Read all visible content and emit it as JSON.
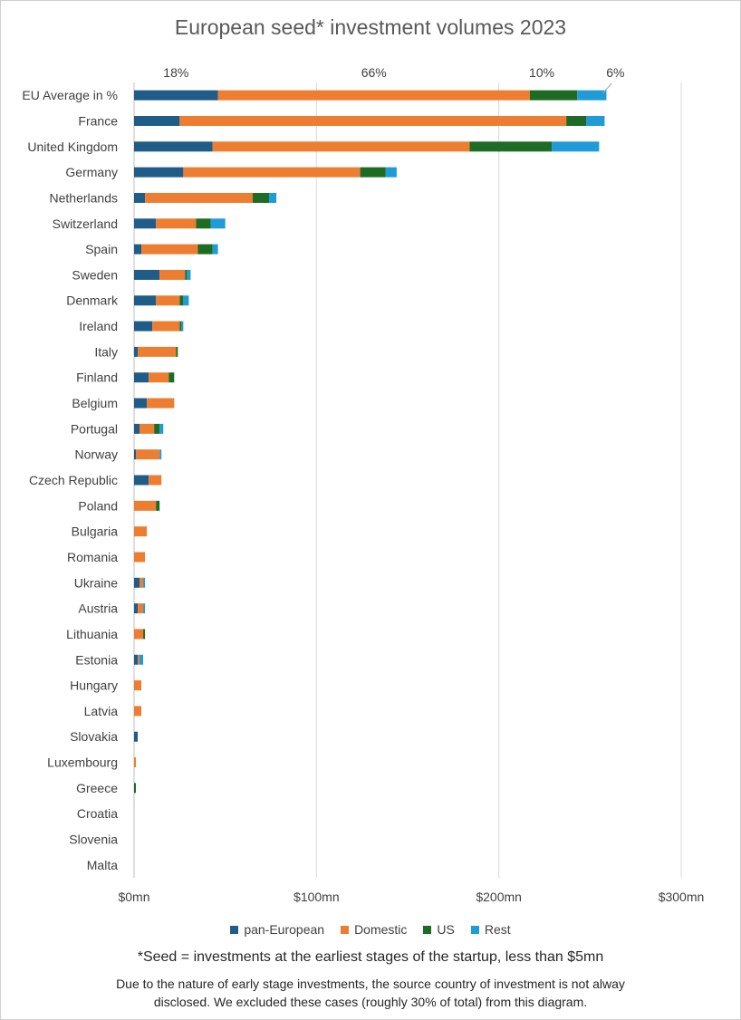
{
  "chart_data": {
    "type": "bar",
    "orientation": "horizontal",
    "stacked": true,
    "title": "European seed* investment volumes 2023",
    "categories": [
      "EU Average in %",
      "France",
      "United Kingdom",
      "Germany",
      "Netherlands",
      "Switzerland",
      "Spain",
      "Sweden",
      "Denmark",
      "Ireland",
      "Italy",
      "Finland",
      "Belgium",
      "Portugal",
      "Norway",
      "Czech Republic",
      "Poland",
      "Bulgaria",
      "Romania",
      "Ukraine",
      "Austria",
      "Lithuania",
      "Estonia",
      "Hungary",
      "Latvia",
      "Slovakia",
      "Luxembourg",
      "Greece",
      "Croatia",
      "Slovenia",
      "Malta"
    ],
    "series": [
      {
        "name": "pan-European",
        "color": "#1f5c87",
        "values": [
          46,
          25,
          43,
          27,
          6,
          12,
          4,
          14,
          12,
          10,
          2,
          8,
          7,
          3,
          1,
          8,
          0,
          0,
          0,
          3,
          2,
          0,
          2,
          0,
          0,
          2,
          0,
          0,
          0,
          0,
          0
        ]
      },
      {
        "name": "Domestic",
        "color": "#ed7d31",
        "values": [
          171,
          212,
          141,
          97,
          59,
          22,
          31,
          14,
          13,
          15,
          21,
          11,
          15,
          8,
          13,
          7,
          12,
          7,
          6,
          2,
          3,
          5,
          1,
          4,
          4,
          0,
          1,
          0,
          0,
          0,
          0
        ]
      },
      {
        "name": "US",
        "color": "#1e6b24",
        "values": [
          26,
          11,
          45,
          14,
          9,
          8,
          8,
          1,
          2,
          1,
          1,
          3,
          0,
          3,
          0,
          0,
          2,
          0,
          0,
          0,
          0,
          1,
          0,
          0,
          0,
          0,
          0,
          1,
          0,
          0,
          0
        ]
      },
      {
        "name": "Rest",
        "color": "#1f9bd7",
        "values": [
          16,
          10,
          26,
          6,
          4,
          8,
          3,
          2,
          3,
          1,
          0,
          0,
          0,
          2,
          1,
          0,
          0,
          0,
          0,
          1,
          1,
          0,
          2,
          0,
          0,
          0,
          0,
          0,
          0,
          0,
          0
        ]
      }
    ],
    "percent_labels": [
      "18%",
      "66%",
      "10%",
      "6%"
    ],
    "xlim": [
      0,
      300
    ],
    "x_ticks": [
      0,
      100,
      200,
      300
    ],
    "x_tick_labels": [
      "$0mn",
      "$100mn",
      "$200mn",
      "$300mn"
    ],
    "grid": "vertical",
    "legend_position": "bottom"
  },
  "footnote": "*Seed = investments at the earliest stages of the startup, less than $5mn",
  "note": "Due to the nature of early stage investments, the source country of investment is not alway disclosed. We excluded these cases (roughly 30% of total) from this diagram."
}
